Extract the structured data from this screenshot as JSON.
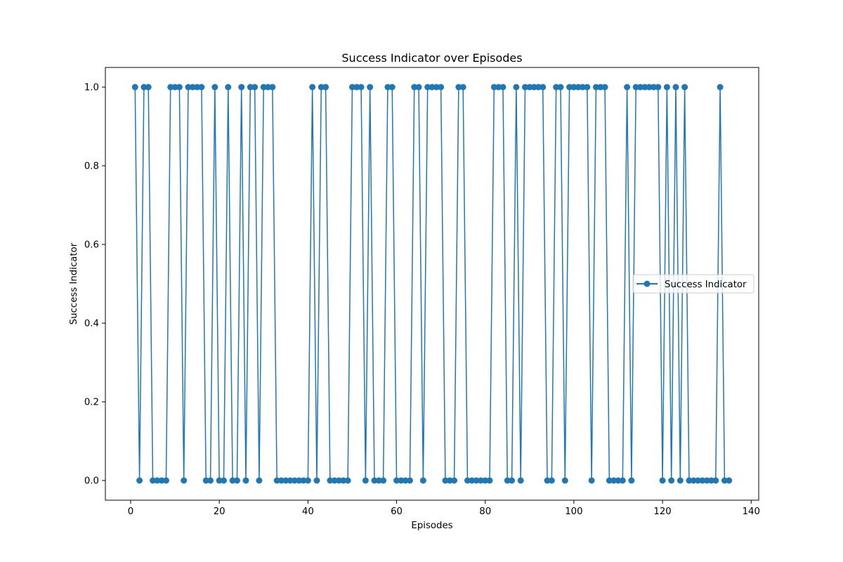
{
  "chart_data": {
    "type": "line",
    "title": "Success Indicator over Episodes",
    "xlabel": "Episodes",
    "ylabel": "Success Indicator",
    "xlim": [
      -5.7,
      141.7
    ],
    "ylim": [
      -0.05,
      1.05
    ],
    "xticks": [
      0,
      20,
      40,
      60,
      80,
      100,
      120,
      140
    ],
    "xtick_labels": [
      "0",
      "20",
      "40",
      "60",
      "80",
      "100",
      "120",
      "140"
    ],
    "yticks": [
      0.0,
      0.2,
      0.4,
      0.6,
      0.8,
      1.0
    ],
    "ytick_labels": [
      "0.0",
      "0.2",
      "0.4",
      "0.6",
      "0.8",
      "1.0"
    ],
    "grid": false,
    "legend_position": "center-right",
    "marker": "circle",
    "series": [
      {
        "name": "Success Indicator",
        "color": "#1f77b4",
        "x": [
          1,
          2,
          3,
          4,
          5,
          6,
          7,
          8,
          9,
          10,
          11,
          12,
          13,
          14,
          15,
          16,
          17,
          18,
          19,
          20,
          21,
          22,
          23,
          24,
          25,
          26,
          27,
          28,
          29,
          30,
          31,
          32,
          33,
          34,
          35,
          36,
          37,
          38,
          39,
          40,
          41,
          42,
          43,
          44,
          45,
          46,
          47,
          48,
          49,
          50,
          51,
          52,
          53,
          54,
          55,
          56,
          57,
          58,
          59,
          60,
          61,
          62,
          63,
          64,
          65,
          66,
          67,
          68,
          69,
          70,
          71,
          72,
          73,
          74,
          75,
          76,
          77,
          78,
          79,
          80,
          81,
          82,
          83,
          84,
          85,
          86,
          87,
          88,
          89,
          90,
          91,
          92,
          93,
          94,
          95,
          96,
          97,
          98,
          99,
          100,
          101,
          102,
          103,
          104,
          105,
          106,
          107,
          108,
          109,
          110,
          111,
          112,
          113,
          114,
          115,
          116,
          117,
          118,
          119,
          120,
          121,
          122,
          123,
          124,
          125,
          126,
          127,
          128,
          129,
          130,
          131,
          132,
          133,
          134,
          135
        ],
        "y": [
          1,
          0,
          1,
          1,
          0,
          0,
          0,
          0,
          1,
          1,
          1,
          0,
          1,
          1,
          1,
          1,
          0,
          0,
          1,
          0,
          0,
          1,
          0,
          0,
          1,
          0,
          1,
          1,
          0,
          1,
          1,
          1,
          0,
          0,
          0,
          0,
          0,
          0,
          0,
          0,
          1,
          0,
          1,
          1,
          0,
          0,
          0,
          0,
          0,
          1,
          1,
          1,
          0,
          1,
          0,
          0,
          0,
          1,
          1,
          0,
          0,
          0,
          0,
          1,
          1,
          0,
          1,
          1,
          1,
          1,
          0,
          0,
          0,
          1,
          1,
          0,
          0,
          0,
          0,
          0,
          0,
          1,
          1,
          1,
          0,
          0,
          1,
          0,
          1,
          1,
          1,
          1,
          1,
          0,
          0,
          1,
          1,
          0,
          1,
          1,
          1,
          1,
          1,
          0,
          1,
          1,
          1,
          0,
          0,
          0,
          0,
          1,
          0,
          1,
          1,
          1,
          1,
          1,
          1,
          0,
          1,
          0,
          1,
          0,
          1,
          0,
          0,
          0,
          0,
          0,
          0,
          0,
          1,
          0,
          0
        ]
      }
    ]
  }
}
